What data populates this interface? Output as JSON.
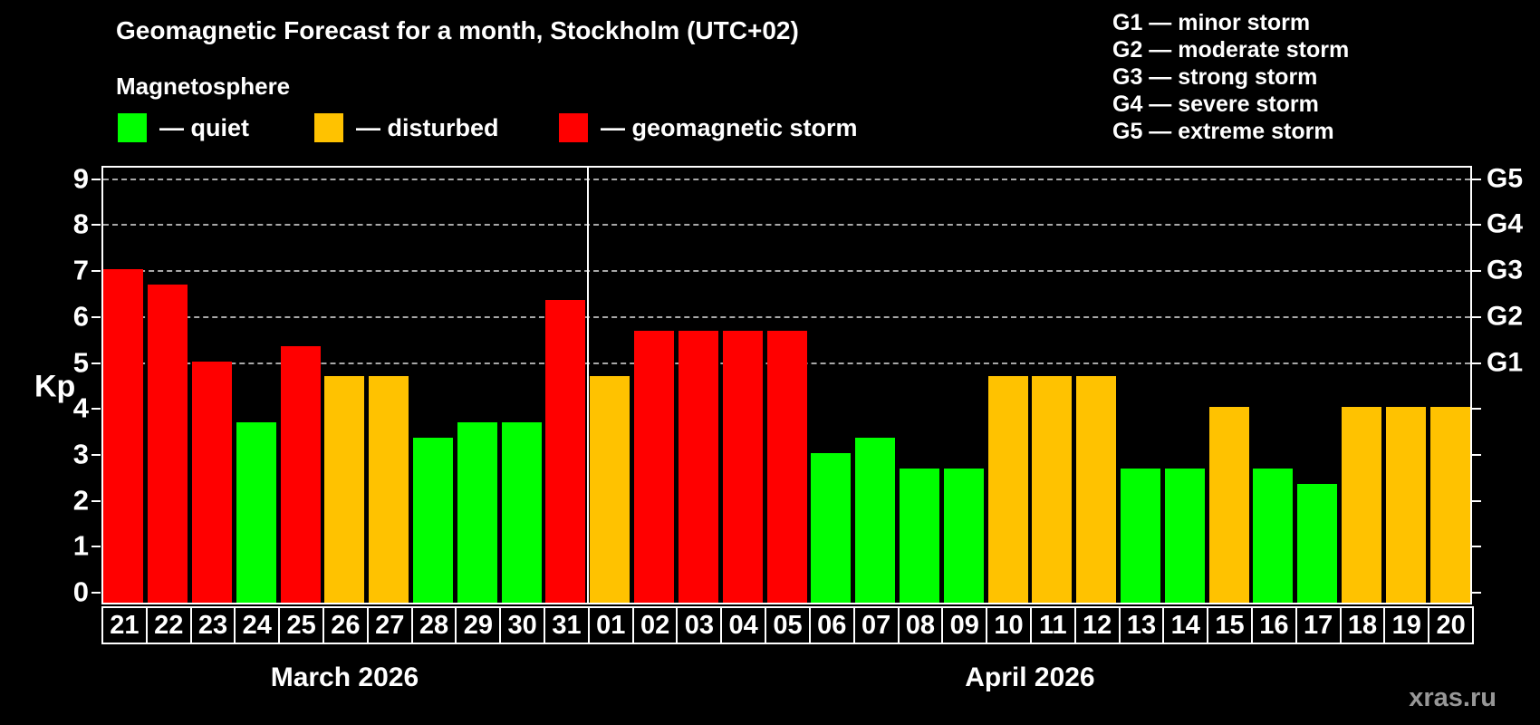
{
  "title": "Geomagnetic Forecast for a month, Stockholm (UTC+02)",
  "subtitle": "Magnetosphere",
  "legend": {
    "quiet_label": "— quiet",
    "disturbed_label": "— disturbed",
    "storm_label": "— geomagnetic storm"
  },
  "g_legend": {
    "g1": "G1 — minor storm",
    "g2": "G2 — moderate storm",
    "g3": "G3 — strong storm",
    "g4": "G4 — severe storm",
    "g5": "G5 — extreme storm"
  },
  "watermark": "xras.ru",
  "chart_data": {
    "type": "bar",
    "title": "Geomagnetic Forecast for a month, Stockholm (UTC+02)",
    "ylabel": "Kp",
    "ylim": [
      0,
      9
    ],
    "yticks": [
      0,
      1,
      2,
      3,
      4,
      5,
      6,
      7,
      8,
      9
    ],
    "grid": "dashed horizontal lines at Kp 5-9 only",
    "legend_position": "top",
    "colors": {
      "quiet": "#00ff00",
      "disturbed": "#ffc200",
      "storm": "#ff0000",
      "background": "#000000",
      "axis": "#ffffff",
      "gridline": "#a8a8a8"
    },
    "right_axis_labels": [
      {
        "kp": 5,
        "label": "G1"
      },
      {
        "kp": 6,
        "label": "G2"
      },
      {
        "kp": 7,
        "label": "G3"
      },
      {
        "kp": 8,
        "label": "G4"
      },
      {
        "kp": 9,
        "label": "G5"
      }
    ],
    "gridlines_kp": [
      5,
      6,
      7,
      8,
      9
    ],
    "months": [
      {
        "label": "March 2026",
        "days_count": 11
      },
      {
        "label": "April 2026",
        "days_count": 20
      }
    ],
    "days": [
      {
        "day": "21",
        "month": "March 2026",
        "kp": 7.0,
        "status": "storm"
      },
      {
        "day": "22",
        "month": "March 2026",
        "kp": 6.67,
        "status": "storm"
      },
      {
        "day": "23",
        "month": "March 2026",
        "kp": 5.0,
        "status": "storm"
      },
      {
        "day": "24",
        "month": "March 2026",
        "kp": 3.67,
        "status": "quiet"
      },
      {
        "day": "25",
        "month": "March 2026",
        "kp": 5.33,
        "status": "storm"
      },
      {
        "day": "26",
        "month": "March 2026",
        "kp": 4.67,
        "status": "disturbed"
      },
      {
        "day": "27",
        "month": "March 2026",
        "kp": 4.67,
        "status": "disturbed"
      },
      {
        "day": "28",
        "month": "March 2026",
        "kp": 3.33,
        "status": "quiet"
      },
      {
        "day": "29",
        "month": "March 2026",
        "kp": 3.67,
        "status": "quiet"
      },
      {
        "day": "30",
        "month": "March 2026",
        "kp": 3.67,
        "status": "quiet"
      },
      {
        "day": "31",
        "month": "March 2026",
        "kp": 6.33,
        "status": "storm"
      },
      {
        "day": "01",
        "month": "April 2026",
        "kp": 4.67,
        "status": "disturbed"
      },
      {
        "day": "02",
        "month": "April 2026",
        "kp": 5.67,
        "status": "storm"
      },
      {
        "day": "03",
        "month": "April 2026",
        "kp": 5.67,
        "status": "storm"
      },
      {
        "day": "04",
        "month": "April 2026",
        "kp": 5.67,
        "status": "storm"
      },
      {
        "day": "05",
        "month": "April 2026",
        "kp": 5.67,
        "status": "storm"
      },
      {
        "day": "06",
        "month": "April 2026",
        "kp": 3.0,
        "status": "quiet"
      },
      {
        "day": "07",
        "month": "April 2026",
        "kp": 3.33,
        "status": "quiet"
      },
      {
        "day": "08",
        "month": "April 2026",
        "kp": 2.67,
        "status": "quiet"
      },
      {
        "day": "09",
        "month": "April 2026",
        "kp": 2.67,
        "status": "quiet"
      },
      {
        "day": "10",
        "month": "April 2026",
        "kp": 4.67,
        "status": "disturbed"
      },
      {
        "day": "11",
        "month": "April 2026",
        "kp": 4.67,
        "status": "disturbed"
      },
      {
        "day": "12",
        "month": "April 2026",
        "kp": 4.67,
        "status": "disturbed"
      },
      {
        "day": "13",
        "month": "April 2026",
        "kp": 2.67,
        "status": "quiet"
      },
      {
        "day": "14",
        "month": "April 2026",
        "kp": 2.67,
        "status": "quiet"
      },
      {
        "day": "15",
        "month": "April 2026",
        "kp": 4.0,
        "status": "disturbed"
      },
      {
        "day": "16",
        "month": "April 2026",
        "kp": 2.67,
        "status": "quiet"
      },
      {
        "day": "17",
        "month": "April 2026",
        "kp": 2.33,
        "status": "quiet"
      },
      {
        "day": "18",
        "month": "April 2026",
        "kp": 4.0,
        "status": "disturbed"
      },
      {
        "day": "19",
        "month": "April 2026",
        "kp": 4.0,
        "status": "disturbed"
      },
      {
        "day": "20",
        "month": "April 2026",
        "kp": 4.0,
        "status": "disturbed"
      }
    ]
  }
}
